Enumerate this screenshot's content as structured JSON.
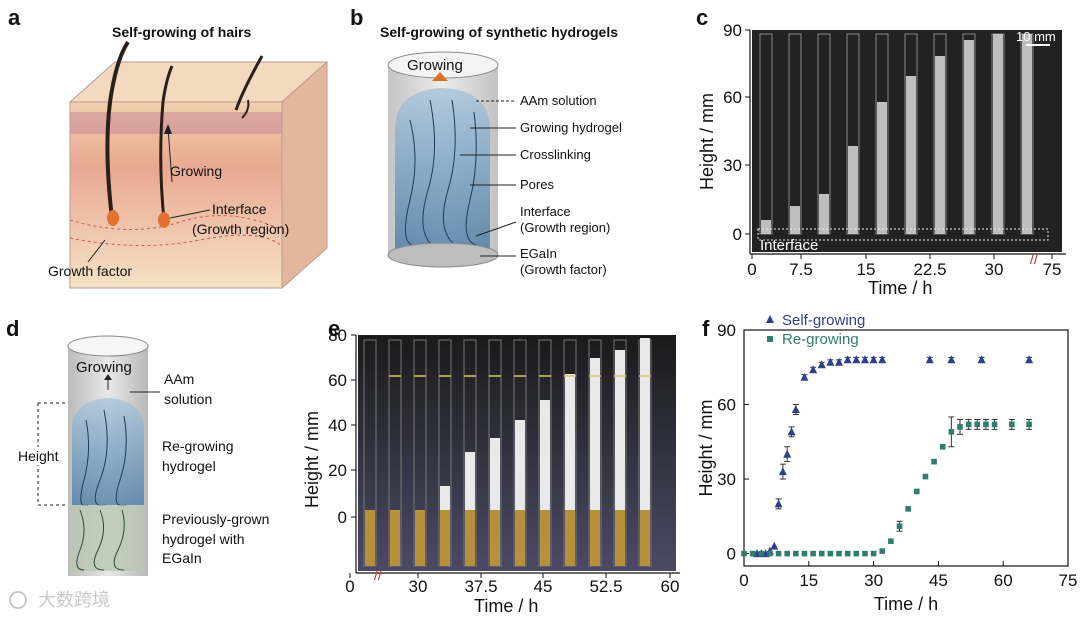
{
  "panels": {
    "a": {
      "letter": "a",
      "title": "Self-growing of hairs",
      "labels": {
        "growing": "Growing",
        "interface": "Interface",
        "growth_region": "(Growth region)",
        "growth_factor": "Growth factor"
      }
    },
    "b": {
      "letter": "b",
      "title": "Self-growing of synthetic hydrogels",
      "labels": {
        "growing": "Growing",
        "aam": "AAm solution",
        "growing_hydrogel": "Growing hydrogel",
        "crosslinking": "Crosslinking",
        "pores": "Pores",
        "interface": "Interface",
        "growth_region": "(Growth region)",
        "egain": "EGaIn",
        "growth_factor": "(Growth factor)"
      }
    },
    "c": {
      "letter": "c",
      "scale_bar": "10 mm",
      "interface_label": "Interface",
      "xlabel": "Time / h",
      "ylabel": "Height / mm",
      "xticks": [
        "0",
        "7.5",
        "15",
        "22.5",
        "30",
        "75"
      ],
      "yticks": [
        "0",
        "30",
        "60",
        "90"
      ]
    },
    "d": {
      "letter": "d",
      "labels": {
        "growing": "Growing",
        "aam1": "AAm",
        "aam2": "solution",
        "height": "Height",
        "regrowing1": "Re-growing",
        "regrowing2": "hydrogel",
        "prev1": "Previously-grown",
        "prev2": "hydrogel with",
        "prev3": "EGaIn"
      }
    },
    "e": {
      "letter": "e",
      "xlabel": "Time / h",
      "ylabel": "Height / mm",
      "xticks": [
        "0",
        "30",
        "37.5",
        "45",
        "52.5",
        "60"
      ],
      "yticks": [
        "0",
        "20",
        "40",
        "60",
        "80"
      ]
    },
    "f": {
      "letter": "f"
    }
  },
  "chart_data": {
    "type": "scatter",
    "xlabel": "Time / h",
    "ylabel": "Height / mm",
    "xlim": [
      0,
      75
    ],
    "ylim": [
      -5,
      90
    ],
    "xticks": [
      0,
      15,
      30,
      45,
      60,
      75
    ],
    "yticks": [
      0,
      30,
      60,
      90
    ],
    "legend": "top-left",
    "series": [
      {
        "name": "Self-growing",
        "marker": "triangle",
        "color": "#2f3f8f",
        "x": [
          3,
          4,
          5,
          6,
          7,
          8,
          9,
          10,
          11,
          12,
          14,
          16,
          18,
          20,
          22,
          24,
          26,
          28,
          30,
          32,
          43,
          48,
          55,
          66
        ],
        "y": [
          0,
          0,
          0,
          1,
          3,
          20,
          33,
          40,
          49,
          58,
          71,
          74,
          76,
          77,
          77,
          78,
          78,
          78,
          78,
          78,
          78,
          78,
          78,
          78
        ],
        "err": [
          0,
          0,
          0,
          0,
          0,
          2,
          3,
          3,
          2,
          2,
          1,
          1,
          1,
          1,
          1,
          1,
          1,
          1,
          1,
          1,
          1,
          1,
          1,
          1
        ]
      },
      {
        "name": "Re-growing",
        "marker": "square",
        "color": "#2e7d6e",
        "x": [
          0,
          2,
          4,
          6,
          8,
          10,
          12,
          14,
          16,
          18,
          20,
          22,
          24,
          26,
          28,
          30,
          32,
          34,
          36,
          38,
          40,
          42,
          44,
          46,
          48,
          50,
          52,
          54,
          56,
          58,
          62,
          66
        ],
        "y": [
          0,
          0,
          0,
          0,
          0,
          0,
          0,
          0,
          0,
          0,
          0,
          0,
          0,
          0,
          0,
          0,
          1,
          5,
          11,
          18,
          25,
          31,
          37,
          43,
          49,
          51,
          52,
          52,
          52,
          52,
          52,
          52
        ],
        "err": [
          0,
          0,
          0,
          0,
          0,
          0,
          0,
          0,
          0,
          0,
          0,
          0,
          0,
          0,
          0,
          0,
          0,
          0,
          2,
          0,
          0,
          0,
          0,
          0,
          6,
          3,
          2,
          2,
          2,
          2,
          2,
          2
        ]
      }
    ]
  },
  "watermark": "大数跨境"
}
